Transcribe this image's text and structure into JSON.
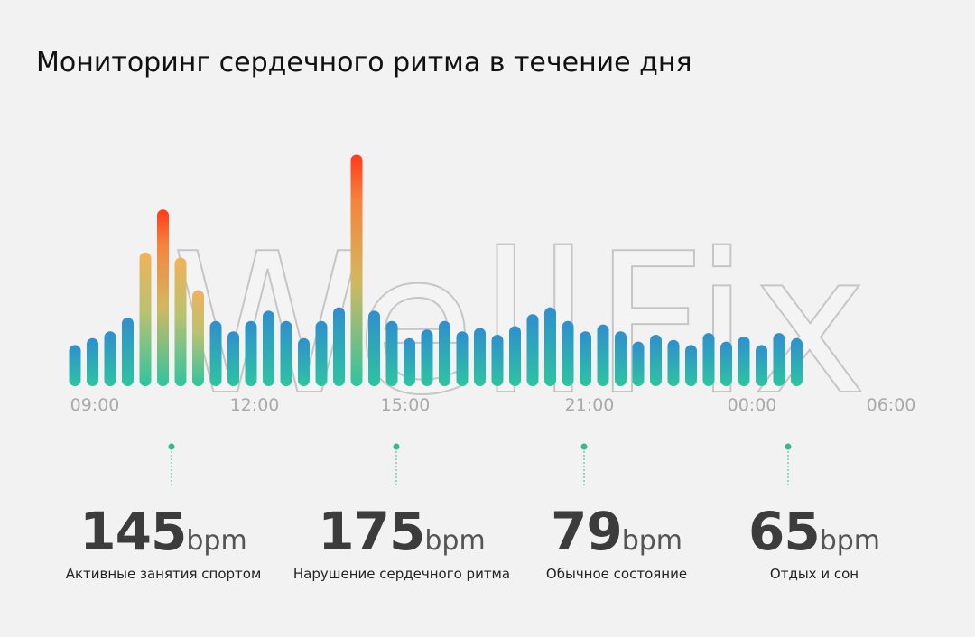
{
  "title": "Мониторинг сердечного ритма в течение дня",
  "watermark": "WellFix",
  "colors": {
    "low": "#2ec4a0",
    "normal": "#2f8fce",
    "medium": "#f0b460",
    "high": "#ff3a1a",
    "tick": "#aaaaaa",
    "marker": "#3ab88a"
  },
  "chart_data": {
    "type": "bar",
    "title": "Мониторинг сердечного ритма в течение дня",
    "xlabel": "",
    "ylabel": "",
    "tick_labels": [
      "09:00",
      "12:00",
      "15:00",
      "21:00",
      "00:00",
      "06:00"
    ],
    "values": [
      64,
      68,
      72,
      80,
      118,
      143,
      115,
      96,
      78,
      72,
      78,
      84,
      78,
      68,
      78,
      86,
      175,
      84,
      78,
      68,
      73,
      78,
      72,
      74,
      70,
      75,
      82,
      86,
      78,
      72,
      76,
      72,
      66,
      70,
      67,
      64,
      71,
      66,
      69,
      64,
      71,
      68
    ],
    "ylim": [
      40,
      180
    ],
    "legend": "none"
  },
  "stats": [
    {
      "value": "145",
      "unit": "bpm",
      "label": "Активные занятия спортом"
    },
    {
      "value": "175",
      "unit": "bpm",
      "label": "Нарушение сердечного ритма"
    },
    {
      "value": "79",
      "unit": "bpm",
      "label": "Обычное состояние"
    },
    {
      "value": "65",
      "unit": "bpm",
      "label": "Отдых и сон"
    }
  ]
}
